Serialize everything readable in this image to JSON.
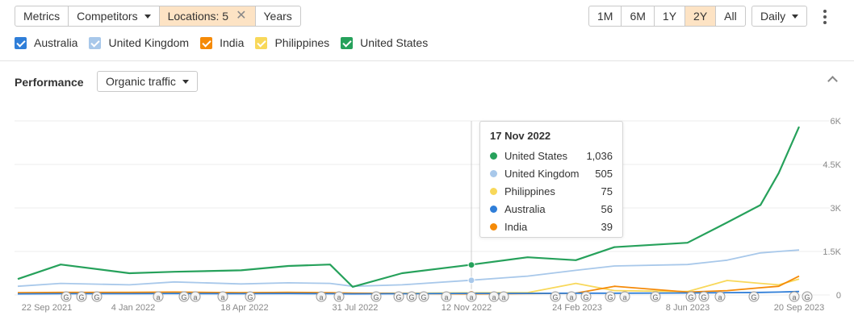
{
  "toolbar": {
    "metrics": "Metrics",
    "competitors": "Competitors",
    "locations": "Locations: 5",
    "years": "Years",
    "ranges": [
      "1M",
      "6M",
      "1Y",
      "2Y",
      "All"
    ],
    "active_range": "2Y",
    "granularity": "Daily"
  },
  "legend": [
    {
      "label": "Australia",
      "color": "#2f7ed8"
    },
    {
      "label": "United Kingdom",
      "color": "#a8c8ea"
    },
    {
      "label": "India",
      "color": "#f58a07"
    },
    {
      "label": "Philippines",
      "color": "#f8d85a"
    },
    {
      "label": "United States",
      "color": "#26a15b"
    }
  ],
  "performance": {
    "title": "Performance",
    "metric": "Organic traffic"
  },
  "tooltip": {
    "date": "17 Nov 2022",
    "rows": [
      {
        "name": "United States",
        "value": "1,036",
        "color": "#26a15b"
      },
      {
        "name": "United Kingdom",
        "value": "505",
        "color": "#a8c8ea"
      },
      {
        "name": "Philippines",
        "value": "75",
        "color": "#f8d85a"
      },
      {
        "name": "Australia",
        "value": "56",
        "color": "#2f7ed8"
      },
      {
        "name": "India",
        "value": "39",
        "color": "#f58a07"
      }
    ]
  },
  "chart_data": {
    "type": "line",
    "y_ticks": [
      "6K",
      "4.5K",
      "3K",
      "1.5K",
      "0"
    ],
    "ylim": [
      0,
      6000
    ],
    "x_ticks": [
      "22 Sep 2021",
      "4 Jan 2022",
      "18 Apr 2022",
      "31 Jul 2022",
      "12 Nov 2022",
      "24 Feb 2023",
      "8 Jun 2023",
      "20 Sep 2023"
    ],
    "x": [
      "2021-09-22",
      "2021-11-01",
      "2022-01-04",
      "2022-02-15",
      "2022-04-18",
      "2022-06-01",
      "2022-07-10",
      "2022-07-31",
      "2022-09-15",
      "2022-11-17",
      "2023-01-10",
      "2023-02-24",
      "2023-04-01",
      "2023-06-08",
      "2023-07-15",
      "2023-08-15",
      "2023-09-01",
      "2023-09-20"
    ],
    "series": [
      {
        "name": "United States",
        "color": "#26a15b",
        "values": [
          550,
          1050,
          750,
          800,
          850,
          1000,
          1050,
          280,
          750,
          1036,
          1300,
          1200,
          1650,
          1800,
          2500,
          3100,
          4200,
          5800
        ]
      },
      {
        "name": "United Kingdom",
        "color": "#a8c8ea",
        "values": [
          300,
          400,
          350,
          450,
          380,
          420,
          400,
          300,
          350,
          505,
          650,
          850,
          1000,
          1050,
          1200,
          1450,
          1500,
          1550
        ]
      },
      {
        "name": "India",
        "color": "#f58a07",
        "values": [
          80,
          90,
          90,
          100,
          80,
          90,
          80,
          60,
          50,
          39,
          50,
          60,
          300,
          100,
          150,
          250,
          300,
          650
        ]
      },
      {
        "name": "Philippines",
        "color": "#f8d85a",
        "values": [
          70,
          80,
          90,
          90,
          80,
          90,
          70,
          60,
          60,
          75,
          80,
          400,
          150,
          120,
          500,
          400,
          350,
          550
        ]
      },
      {
        "name": "Australia",
        "color": "#2f7ed8",
        "values": [
          40,
          45,
          45,
          50,
          45,
          50,
          45,
          40,
          45,
          56,
          55,
          60,
          60,
          70,
          80,
          90,
          100,
          120
        ]
      }
    ],
    "grid": true,
    "annotations": [
      "G",
      "G",
      "G",
      "a",
      "G",
      "a",
      "a",
      "G",
      "a",
      "a",
      "G",
      "G",
      "G",
      "G",
      "a",
      "a",
      "a",
      "a",
      "G",
      "a",
      "G",
      "G",
      "a",
      "G",
      "G",
      "G",
      "a",
      "G",
      "a",
      "G"
    ]
  }
}
